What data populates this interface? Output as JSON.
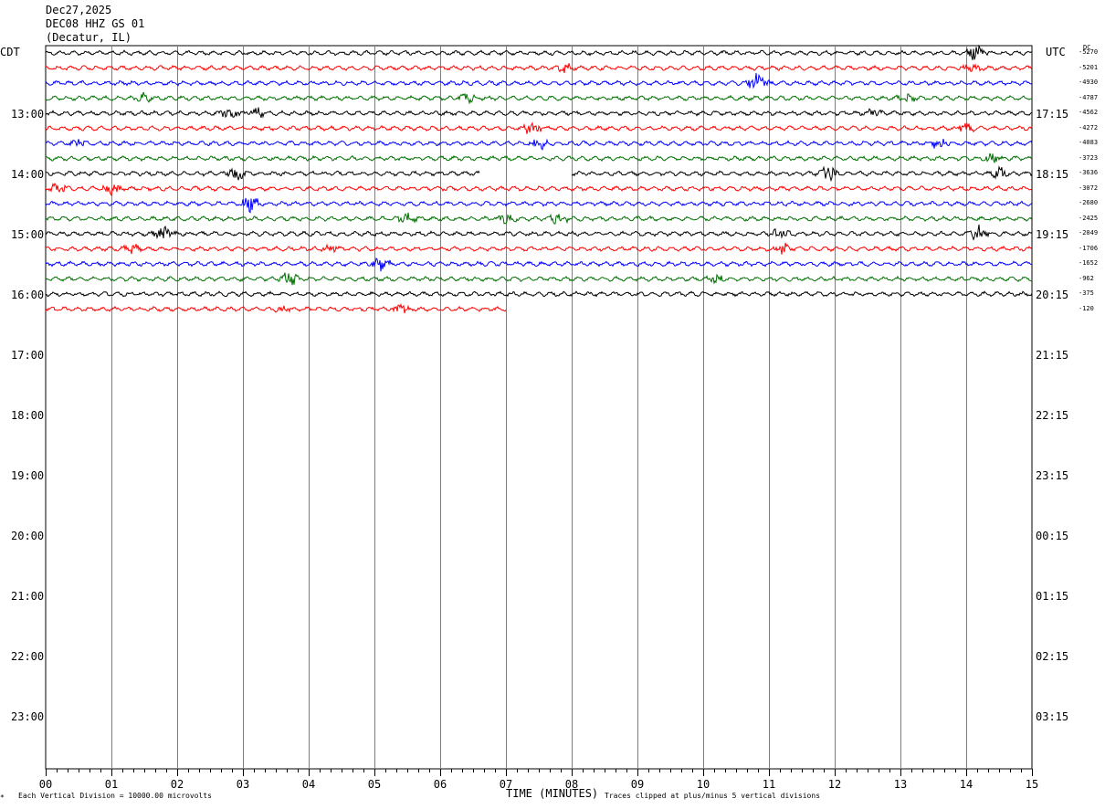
{
  "header": {
    "date": "Dec27,2025",
    "station": "DEC08 HHZ GS 01",
    "location": "(Decatur, IL)"
  },
  "left_zone_label": "CDT",
  "right_zone_label": "UTC",
  "dc_label": "DC",
  "footer": {
    "scale_note": "Each Vertical Division = 10000.00 microvolts",
    "clip_note": "Traces clipped at plus/minus 5 vertical divisions",
    "corner_mark": "*"
  },
  "colors": {
    "black": "#000000",
    "red": "#ff0000",
    "blue": "#0000ff",
    "green": "#007000",
    "grid": "#808080"
  },
  "chart_data": {
    "type": "line",
    "title": "",
    "xlabel": "TIME (MINUTES)",
    "ylabel": "",
    "x_ticks": [
      "00",
      "01",
      "02",
      "03",
      "04",
      "05",
      "06",
      "07",
      "08",
      "09",
      "10",
      "11",
      "12",
      "13",
      "14",
      "15"
    ],
    "xlim": [
      0,
      15
    ],
    "left_time_labels": [
      "13:00",
      "14:00",
      "15:00",
      "16:00",
      "17:00",
      "18:00",
      "19:00",
      "20:00",
      "21:00",
      "22:00",
      "23:00"
    ],
    "right_time_labels": [
      "17:15",
      "18:15",
      "19:15",
      "20:15",
      "21:15",
      "22:15",
      "23:15",
      "00:15",
      "01:15",
      "02:15",
      "03:15"
    ],
    "trace_count": 18,
    "trace_color_cycle": [
      "black",
      "red",
      "blue",
      "green"
    ],
    "dc_offsets": [
      "-5270",
      "-5201",
      "-4930",
      "-4787",
      "-4562",
      "-4272",
      "-4083",
      "-3723",
      "-3636",
      "-3072",
      "-2680",
      "-2425",
      "-2049",
      "-1706",
      "-1652",
      "-962",
      "-375",
      "-120"
    ],
    "last_trace_end_minute": 7.0,
    "gap": {
      "trace": 8,
      "from_minute": 6.6,
      "to_minute": 8.0
    }
  }
}
